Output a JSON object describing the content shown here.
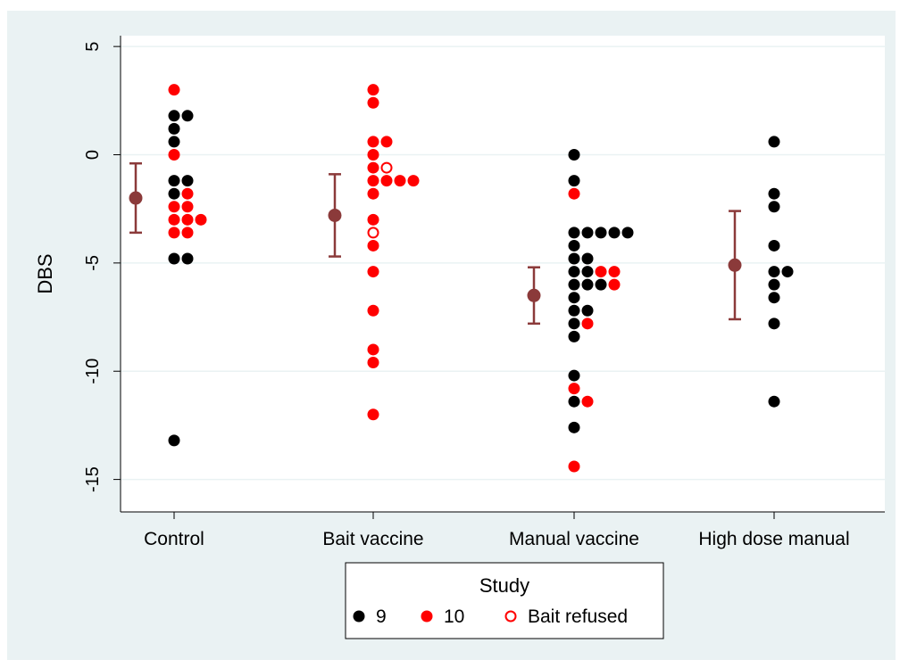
{
  "chart_data": {
    "type": "scatter",
    "ylabel": "DBS",
    "xlabel": "",
    "ylim": [
      -16.5,
      5.5
    ],
    "yticks": [
      5,
      0,
      -5,
      -10,
      -15
    ],
    "ytick_labels": [
      "5",
      "0",
      "-5",
      "-10",
      "-15"
    ],
    "categories": [
      "Control",
      "Bait vaccine",
      "Manual vaccine",
      "High dose manual"
    ],
    "grid": true,
    "legend": {
      "title": "Study",
      "placement": "bottom-center",
      "entries": [
        {
          "label": "9",
          "marker": "filled",
          "color": "#000000"
        },
        {
          "label": "10",
          "marker": "filled",
          "color": "#ff0000"
        },
        {
          "label": "Bait refused",
          "marker": "hollow",
          "color": "#ff0000"
        }
      ]
    },
    "summary": [
      {
        "category": "Control",
        "mean": -2.0,
        "low": -3.6,
        "high": -0.4
      },
      {
        "category": "Bait vaccine",
        "mean": -2.8,
        "low": -4.7,
        "high": -0.9
      },
      {
        "category": "Manual vaccine",
        "mean": -6.5,
        "low": -7.8,
        "high": -5.2
      },
      {
        "category": "High dose manual",
        "mean": -5.1,
        "low": -7.6,
        "high": -2.6
      }
    ],
    "series": [
      {
        "name": "9",
        "color": "#000000",
        "points": [
          {
            "category": "Control",
            "values": [
              1.8,
              1.8,
              1.2,
              0.6,
              -1.2,
              -1.2,
              -1.8,
              -4.8,
              -4.8,
              -13.2
            ]
          },
          {
            "category": "Manual vaccine",
            "values": [
              0.0,
              -1.2,
              -3.6,
              -3.6,
              -3.6,
              -3.6,
              -3.6,
              -4.2,
              -4.8,
              -4.8,
              -5.4,
              -5.4,
              -6.0,
              -6.0,
              -6.0,
              -6.6,
              -7.2,
              -7.2,
              -7.8,
              -8.4,
              -10.2,
              -11.4,
              -12.6
            ]
          },
          {
            "category": "High dose manual",
            "values": [
              0.6,
              -1.8,
              -2.4,
              -4.2,
              -5.4,
              -5.4,
              -6.0,
              -6.6,
              -7.8,
              -11.4
            ]
          }
        ]
      },
      {
        "name": "10",
        "color": "#ff0000",
        "points": [
          {
            "category": "Control",
            "values": [
              3.0,
              0.0,
              -1.8,
              -2.4,
              -2.4,
              -3.0,
              -3.0,
              -3.0,
              -3.6,
              -3.6
            ]
          },
          {
            "category": "Bait vaccine",
            "values": [
              3.0,
              2.4,
              0.6,
              0.6,
              0.0,
              -0.6,
              -1.2,
              -1.2,
              -1.2,
              -1.2,
              -1.8,
              -3.0,
              -4.2,
              -5.4,
              -7.2,
              -9.0,
              -9.6,
              -12.0
            ]
          },
          {
            "category": "Manual vaccine",
            "values": [
              -1.8,
              -5.4,
              -5.4,
              -6.0,
              -7.8,
              -10.8,
              -11.4,
              -14.4
            ]
          }
        ]
      },
      {
        "name": "Bait refused",
        "color": "#ff0000",
        "hollow": true,
        "points": [
          {
            "category": "Bait vaccine",
            "values": [
              -0.6,
              -3.6
            ]
          }
        ]
      }
    ]
  }
}
